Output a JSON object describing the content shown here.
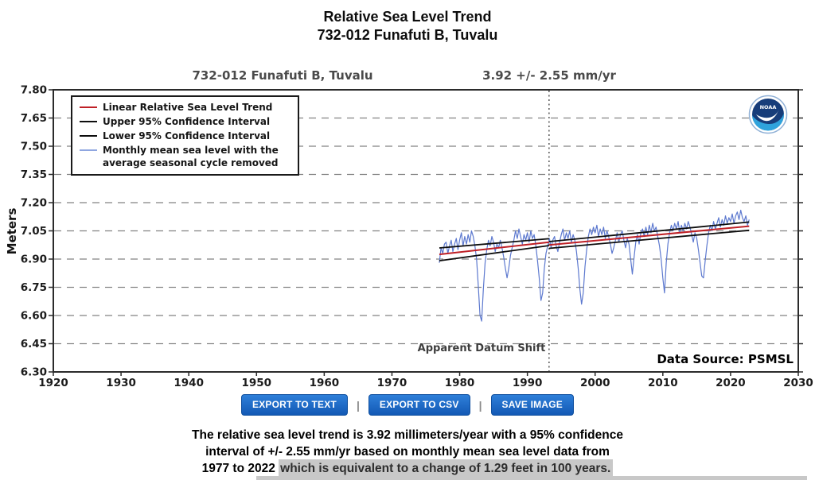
{
  "page": {
    "title_line1": "Relative Sea Level Trend",
    "title_line2": "732-012 Funafuti B, Tuvalu"
  },
  "chart_header": {
    "station": "732-012 Funafuti B, Tuvalu",
    "trend": "3.92 +/-  2.55 mm/yr"
  },
  "legend": {
    "items": [
      {
        "label": "Linear Relative Sea Level Trend",
        "color": "#bf2026"
      },
      {
        "label": "Upper 95% Confidence Interval",
        "color": "#0d0d0d"
      },
      {
        "label": "Lower 95% Confidence Interval",
        "color": "#0d0d0d"
      },
      {
        "label": "Monthly mean sea level with the\naverage seasonal cycle removed",
        "color": "#8fa6e0"
      }
    ]
  },
  "plot_labels": {
    "y_axis": "Meters",
    "datum_shift": "Apparent Datum Shift",
    "data_source": "Data Source: PSMSL",
    "noaa_logo": "NOAA"
  },
  "buttons": {
    "divider": "|",
    "items": [
      {
        "label": "EXPORT TO TEXT"
      },
      {
        "label": "EXPORT TO CSV"
      },
      {
        "label": "SAVE IMAGE"
      }
    ]
  },
  "caption": {
    "line1": "The relative sea level trend is 3.92 millimeters/year with a 95% confidence",
    "line2": "interval of +/- 2.55 mm/yr based on monthly mean sea level data from",
    "line3_normal": "1977 to 2022 ",
    "line3_highlight": "which is equivalent to a change of 1.29 feet in 100 years."
  },
  "chart_data": {
    "type": "line",
    "title": "732-012 Funafuti B, Tuvalu",
    "trend_annotation": "3.92 +/- 2.55 mm/yr",
    "xlabel": "",
    "ylabel": "Meters",
    "xlim": [
      1920,
      2030
    ],
    "ylim": [
      6.3,
      7.8
    ],
    "xticks": [
      1920,
      1930,
      1940,
      1950,
      1960,
      1970,
      1980,
      1990,
      2000,
      2010,
      2020,
      2030
    ],
    "yticks": [
      7.8,
      7.65,
      7.5,
      7.35,
      7.2,
      7.05,
      6.9,
      6.75,
      6.6,
      6.45,
      6.3
    ],
    "grid": "horizontal-dashed",
    "datum_shift_year": 1993.2,
    "data_period": {
      "start": 1977,
      "end": 2022
    },
    "trend_mm_per_yr": 3.92,
    "ci_mm_per_yr": 2.55,
    "series": [
      {
        "name": "Monthly mean sea level with the average seasonal cycle removed",
        "color": "#5d79cf",
        "width": 1.2,
        "x_start": 1977.0,
        "x_step": 0.25,
        "values": [
          6.88,
          6.96,
          6.93,
          6.98,
          6.99,
          6.93,
          6.97,
          7.0,
          6.94,
          6.98,
          7.01,
          6.95,
          7.0,
          7.04,
          6.97,
          7.02,
          6.98,
          7.03,
          6.99,
          7.05,
          7.02,
          6.97,
          6.9,
          6.76,
          6.6,
          6.57,
          6.74,
          6.88,
          6.95,
          7.0,
          6.97,
          7.02,
          6.99,
          6.94,
          6.98,
          6.96,
          7.0,
          6.96,
          6.91,
          6.85,
          6.8,
          6.85,
          6.92,
          6.96,
          7.0,
          7.05,
          7.01,
          7.06,
          7.02,
          6.98,
          7.03,
          7.0,
          7.04,
          6.99,
          7.05,
          7.01,
          7.03,
          6.97,
          6.89,
          6.8,
          6.68,
          6.72,
          6.85,
          6.93,
          6.97,
          7.01,
          6.96,
          7.0,
          7.02,
          6.97,
          6.94,
          6.99,
          7.03,
          7.06,
          7.0,
          7.04,
          7.01,
          7.05,
          6.99,
          7.03,
          7.0,
          6.94,
          6.85,
          6.74,
          6.66,
          6.72,
          6.86,
          6.95,
          7.02,
          7.06,
          7.03,
          7.07,
          7.04,
          7.08,
          7.02,
          7.06,
          7.03,
          7.07,
          7.01,
          7.05,
          7.02,
          6.98,
          6.93,
          6.96,
          7.0,
          7.04,
          6.99,
          7.03,
          7.05,
          7.0,
          6.96,
          7.01,
          6.98,
          6.9,
          6.82,
          6.91,
          6.99,
          7.03,
          6.98,
          7.04,
          7.06,
          7.02,
          7.07,
          7.03,
          7.08,
          7.04,
          7.09,
          7.05,
          7.07,
          7.02,
          6.97,
          6.9,
          6.8,
          6.72,
          6.88,
          6.98,
          7.04,
          7.08,
          7.05,
          7.09,
          7.06,
          7.1,
          7.04,
          7.08,
          7.05,
          7.09,
          7.06,
          7.1,
          7.07,
          7.03,
          6.99,
          7.04,
          7.01,
          6.95,
          6.88,
          6.81,
          6.8,
          6.89,
          6.97,
          7.04,
          7.08,
          7.05,
          7.1,
          7.06,
          7.09,
          7.12,
          7.07,
          7.11,
          7.08,
          7.13,
          7.09,
          7.12,
          7.1,
          7.14,
          7.09,
          7.13,
          7.15,
          7.11,
          7.16,
          7.12,
          7.1,
          7.13,
          7.08,
          7.11
        ]
      },
      {
        "name": "Linear Relative Sea Level Trend",
        "color": "#bf2026",
        "width": 2,
        "segments": [
          [
            [
              1977.0,
              6.925
            ],
            [
              1993.2,
              6.99
            ]
          ],
          [
            [
              1993.2,
              6.975
            ],
            [
              2022.75,
              7.075
            ]
          ]
        ]
      },
      {
        "name": "Upper 95% Confidence Interval",
        "color": "#0d0d0d",
        "width": 1.8,
        "segments": [
          [
            [
              1977.0,
              6.959
            ],
            [
              1993.2,
              7.008
            ]
          ],
          [
            [
              1993.2,
              6.993
            ],
            [
              2022.75,
              7.097
            ]
          ]
        ]
      },
      {
        "name": "Lower 95% Confidence Interval",
        "color": "#0d0d0d",
        "width": 1.8,
        "segments": [
          [
            [
              1977.0,
              6.891
            ],
            [
              1993.2,
              6.972
            ]
          ],
          [
            [
              1993.2,
              6.957
            ],
            [
              2022.75,
              7.053
            ]
          ]
        ]
      }
    ],
    "style": {
      "grid_color": "#828282",
      "border_color": "#2b2b2b",
      "datum_line_color": "#3c3c3c",
      "tick_label_color": "#1c1c1c",
      "noaa_navy": "#173d7a",
      "noaa_lightblue": "#2fa3dc"
    }
  }
}
